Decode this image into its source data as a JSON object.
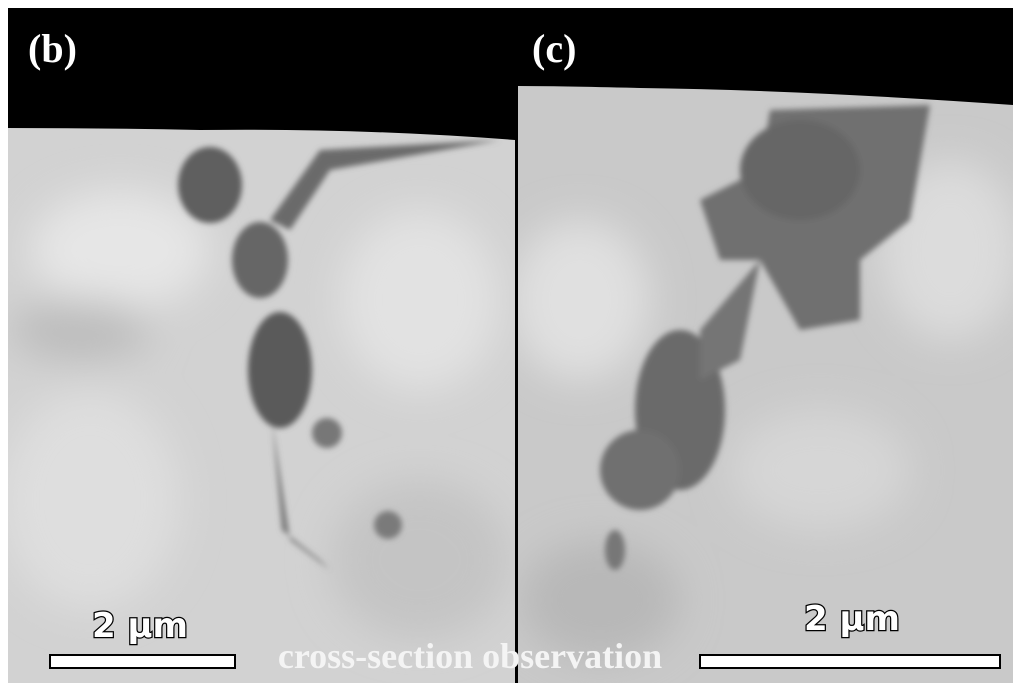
{
  "panels": [
    {
      "label": "(b)",
      "scale_bar": "2 μm"
    },
    {
      "label": "(c)",
      "scale_bar": "2 μm"
    }
  ],
  "caption": "cross-section observation"
}
